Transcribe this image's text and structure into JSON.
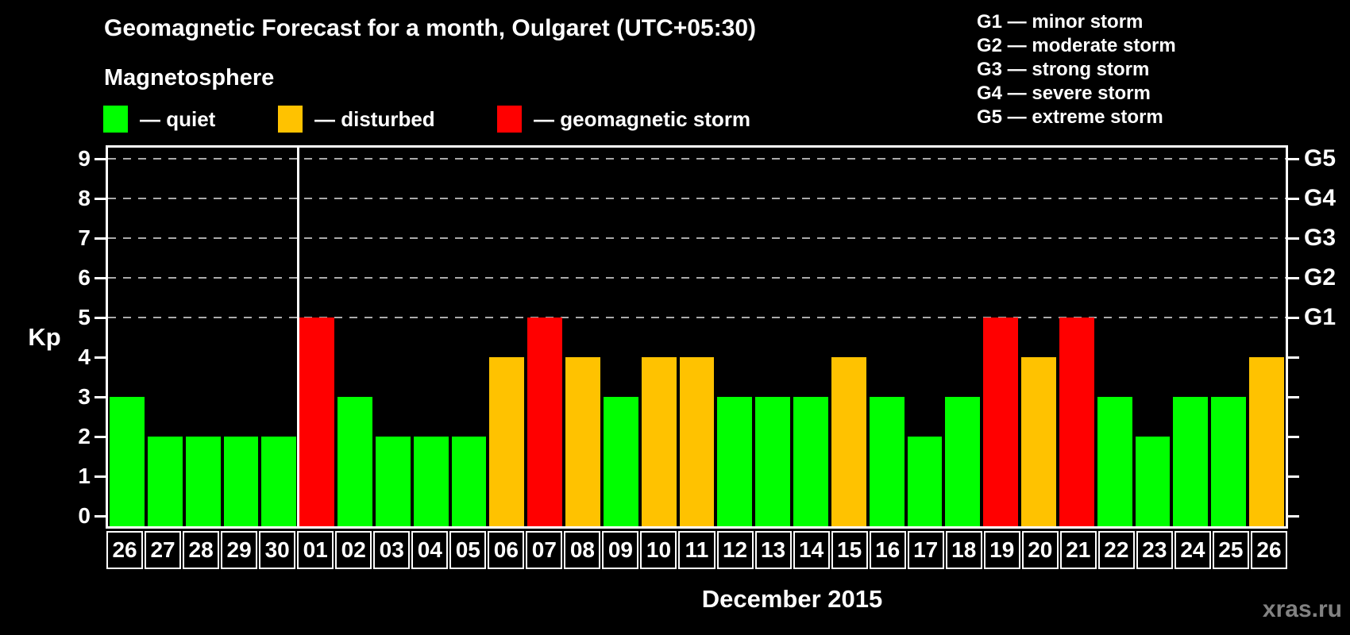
{
  "title": "Geomagnetic Forecast for a month, Oulgaret (UTC+05:30)",
  "legend": {
    "heading": "Magnetosphere",
    "items": [
      {
        "key": "quiet",
        "label": "— quiet",
        "color": "#00ff00"
      },
      {
        "key": "disturbed",
        "label": "— disturbed",
        "color": "#ffc200"
      },
      {
        "key": "storm",
        "label": "— geomagnetic storm",
        "color": "#ff0000"
      }
    ]
  },
  "g_scale_legend": [
    "G1 — minor storm",
    "G2 — moderate storm",
    "G3 — strong storm",
    "G4 — severe storm",
    "G5 — extreme storm"
  ],
  "watermark": "xras.ru",
  "chart_data": {
    "type": "bar",
    "title": "Geomagnetic Forecast for a month, Oulgaret (UTC+05:30)",
    "xlabel": "December 2015",
    "ylabel": "Kp",
    "ylim": [
      0,
      9
    ],
    "grid": "dashed horizontal at Kp 5-9 only",
    "legend_position": "top",
    "yticks_left": [
      "0",
      "1",
      "2",
      "3",
      "4",
      "5",
      "6",
      "7",
      "8",
      "9"
    ],
    "yticks_right": [
      {
        "label": "G1",
        "kp": 5
      },
      {
        "label": "G2",
        "kp": 6
      },
      {
        "label": "G3",
        "kp": 7
      },
      {
        "label": "G4",
        "kp": 8
      },
      {
        "label": "G5",
        "kp": 9
      }
    ],
    "gridlines_kp": [
      5,
      6,
      7,
      8,
      9
    ],
    "month_separator_before_index": 5,
    "status_colors": {
      "quiet": "#00ff00",
      "disturbed": "#ffc200",
      "storm": "#ff0000"
    },
    "bars": [
      {
        "day": "26",
        "kp": 3,
        "status": "quiet"
      },
      {
        "day": "27",
        "kp": 2,
        "status": "quiet"
      },
      {
        "day": "28",
        "kp": 2,
        "status": "quiet"
      },
      {
        "day": "29",
        "kp": 2,
        "status": "quiet"
      },
      {
        "day": "30",
        "kp": 2,
        "status": "quiet"
      },
      {
        "day": "01",
        "kp": 5,
        "status": "storm"
      },
      {
        "day": "02",
        "kp": 3,
        "status": "quiet"
      },
      {
        "day": "03",
        "kp": 2,
        "status": "quiet"
      },
      {
        "day": "04",
        "kp": 2,
        "status": "quiet"
      },
      {
        "day": "05",
        "kp": 2,
        "status": "quiet"
      },
      {
        "day": "06",
        "kp": 4,
        "status": "disturbed"
      },
      {
        "day": "07",
        "kp": 5,
        "status": "storm"
      },
      {
        "day": "08",
        "kp": 4,
        "status": "disturbed"
      },
      {
        "day": "09",
        "kp": 3,
        "status": "quiet"
      },
      {
        "day": "10",
        "kp": 4,
        "status": "disturbed"
      },
      {
        "day": "11",
        "kp": 4,
        "status": "disturbed"
      },
      {
        "day": "12",
        "kp": 3,
        "status": "quiet"
      },
      {
        "day": "13",
        "kp": 3,
        "status": "quiet"
      },
      {
        "day": "14",
        "kp": 3,
        "status": "quiet"
      },
      {
        "day": "15",
        "kp": 4,
        "status": "disturbed"
      },
      {
        "day": "16",
        "kp": 3,
        "status": "quiet"
      },
      {
        "day": "17",
        "kp": 2,
        "status": "quiet"
      },
      {
        "day": "18",
        "kp": 3,
        "status": "quiet"
      },
      {
        "day": "19",
        "kp": 5,
        "status": "storm"
      },
      {
        "day": "20",
        "kp": 4,
        "status": "disturbed"
      },
      {
        "day": "21",
        "kp": 5,
        "status": "storm"
      },
      {
        "day": "22",
        "kp": 3,
        "status": "quiet"
      },
      {
        "day": "23",
        "kp": 2,
        "status": "quiet"
      },
      {
        "day": "24",
        "kp": 3,
        "status": "quiet"
      },
      {
        "day": "25",
        "kp": 3,
        "status": "quiet"
      },
      {
        "day": "26",
        "kp": 4,
        "status": "disturbed"
      }
    ]
  }
}
